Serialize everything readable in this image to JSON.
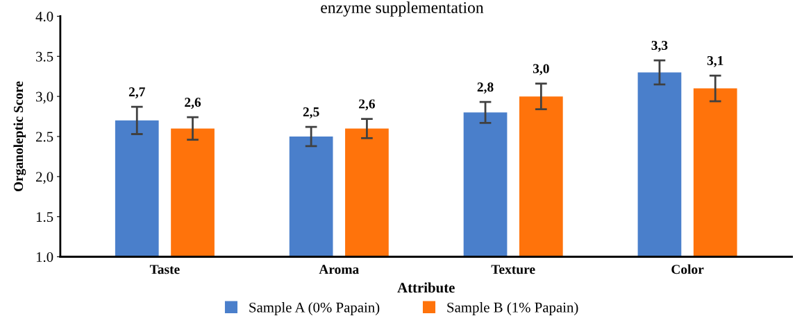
{
  "chart_data": {
    "type": "bar",
    "title": "enzyme supplementation",
    "xlabel": "Attribute",
    "ylabel": "Organoleptic Score",
    "categories": [
      "Taste",
      "Aroma",
      "Texture",
      "Color"
    ],
    "series": [
      {
        "name": "Sample A (0% Papain)",
        "color": "#4a7fcb",
        "values": [
          2.7,
          2.5,
          2.8,
          3.3
        ],
        "errors": [
          0.17,
          0.12,
          0.13,
          0.15
        ],
        "value_labels": [
          "2,7",
          "2,5",
          "2,8",
          "3,3"
        ]
      },
      {
        "name": "Sample B (1% Papain)",
        "color": "#ff730b",
        "values": [
          2.6,
          2.6,
          3.0,
          3.1
        ],
        "errors": [
          0.14,
          0.12,
          0.16,
          0.16
        ],
        "value_labels": [
          "2,6",
          "2,6",
          "3,0",
          "3,1"
        ]
      }
    ],
    "ylim": [
      1.0,
      4.0
    ],
    "yticks": [
      {
        "value": 1.0,
        "label": "1.0"
      },
      1.5,
      {
        "value": 2.0,
        "label": "2,0"
      },
      2.5,
      {
        "value": 3.0,
        "label": "3,0"
      },
      3.5,
      {
        "value": 4.0,
        "label": "4.0"
      }
    ],
    "grid": false,
    "legend": "bottom"
  }
}
